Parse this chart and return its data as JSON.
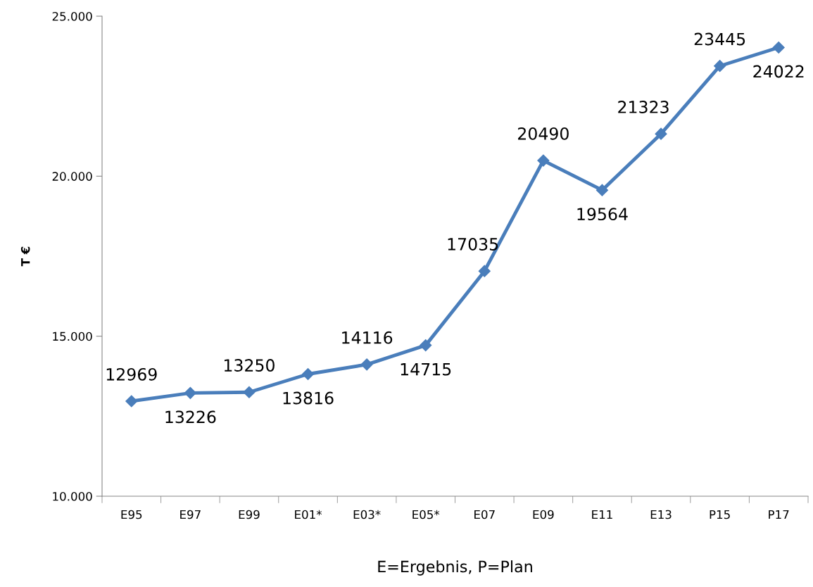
{
  "chart_data": {
    "type": "line",
    "xlabel": "E=Ergebnis, P=Plan",
    "ylabel": "T €",
    "categories": [
      "E95",
      "E97",
      "E99",
      "E01*",
      "E03*",
      "E05*",
      "E07",
      "E09",
      "E11",
      "E13",
      "P15",
      "P17"
    ],
    "values": [
      12969,
      13226,
      13250,
      13816,
      14116,
      14715,
      17035,
      20490,
      19564,
      21323,
      23445,
      24022
    ],
    "color": "#4a7ebb",
    "marker": "diamond",
    "line_style": "solid",
    "data_labels": true,
    "grid": false,
    "legend": false,
    "ylim": [
      10000,
      25000
    ],
    "yticks": [
      {
        "value": 10000,
        "label": "10.000"
      },
      {
        "value": 15000,
        "label": "15.000"
      },
      {
        "value": 20000,
        "label": "20.000"
      },
      {
        "value": 25000,
        "label": "25.000"
      }
    ]
  }
}
